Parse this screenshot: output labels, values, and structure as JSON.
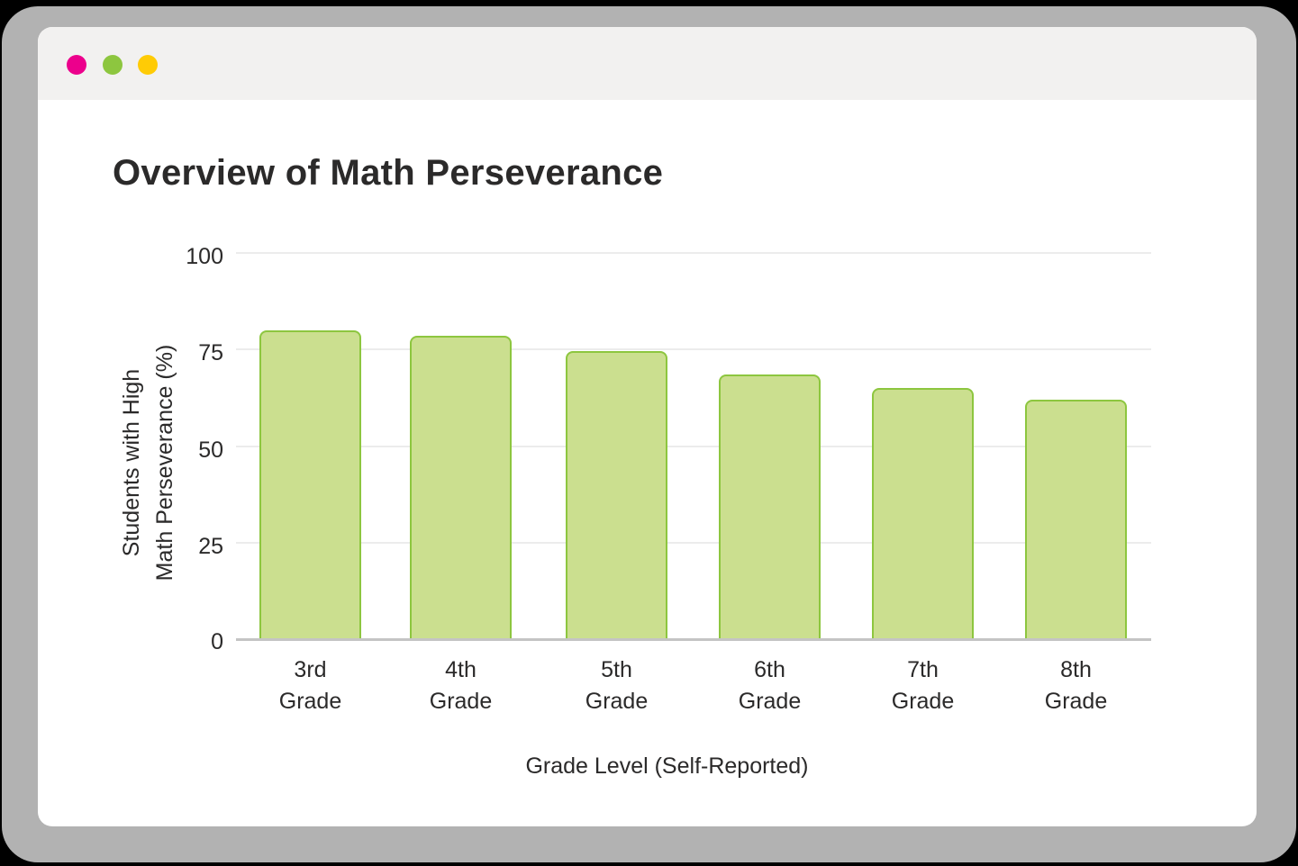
{
  "window": {
    "traffic_lights": [
      {
        "name": "close",
        "color": "#ec008c"
      },
      {
        "name": "minimize",
        "color": "#8dc63f"
      },
      {
        "name": "maximize",
        "color": "#ffcb05"
      }
    ]
  },
  "chart": {
    "title": "Overview of Math Perseverance",
    "ylabel_line1": "Students with High",
    "ylabel_line2": "Math Perseverance (%)",
    "xlabel": "Grade Level (Self-Reported)",
    "yticks": [
      "100",
      "75",
      "50",
      "25",
      "0"
    ],
    "categories": [
      {
        "line1": "3rd",
        "line2": "Grade"
      },
      {
        "line1": "4th",
        "line2": "Grade"
      },
      {
        "line1": "5th",
        "line2": "Grade"
      },
      {
        "line1": "6th",
        "line2": "Grade"
      },
      {
        "line1": "7th",
        "line2": "Grade"
      },
      {
        "line1": "8th",
        "line2": "Grade"
      }
    ],
    "colors": {
      "bar_fill": "#cbdf8f",
      "bar_border": "#8dc63f"
    }
  },
  "chart_data": {
    "type": "bar",
    "title": "Overview of Math Perseverance",
    "xlabel": "Grade Level (Self-Reported)",
    "ylabel": "Students with High Math Perseverance (%)",
    "categories": [
      "3rd Grade",
      "4th Grade",
      "5th Grade",
      "6th Grade",
      "7th Grade",
      "8th Grade"
    ],
    "values": [
      80,
      78.5,
      74.5,
      68.5,
      65,
      62
    ],
    "ylim": [
      0,
      100
    ],
    "yticks": [
      0,
      25,
      50,
      75,
      100
    ],
    "grid": true,
    "legend": null
  }
}
